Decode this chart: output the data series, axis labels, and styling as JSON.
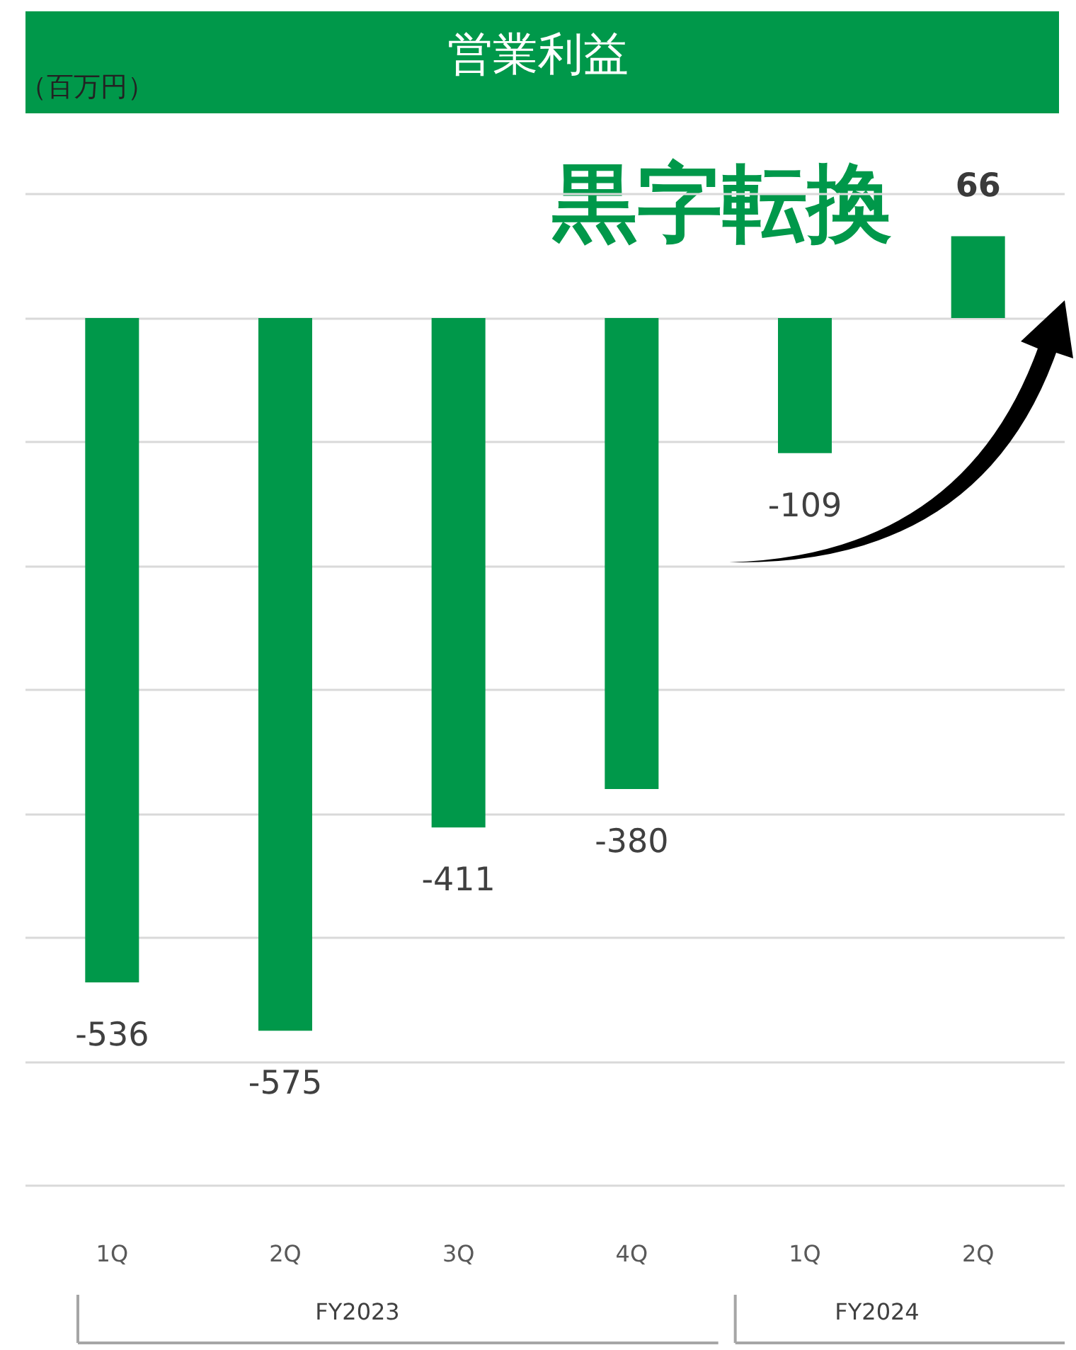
{
  "chart_data": {
    "type": "bar",
    "title": "営業利益",
    "ylabel": "（百万円）",
    "categories": [
      "1Q",
      "2Q",
      "3Q",
      "4Q",
      "1Q",
      "2Q"
    ],
    "values": [
      -536,
      -575,
      -411,
      -380,
      -109,
      66
    ],
    "color": "#00984a",
    "data_labels": true,
    "ylim": [
      -700,
      100
    ],
    "yticks": [
      {
        "value": -700,
        "label": null
      },
      {
        "value": -600,
        "label": null
      },
      {
        "value": -500,
        "label": null
      },
      {
        "value": -400,
        "label": null
      },
      {
        "value": -300,
        "label": null
      },
      {
        "value": -200,
        "label": null
      },
      {
        "value": -100,
        "label": null
      },
      {
        "value": 0,
        "label": null
      },
      {
        "value": 100,
        "label": null
      }
    ],
    "grid": "y",
    "tick_labels": "x",
    "annotations": [
      "黒字転換",
      "FY2023",
      "FY2024"
    ]
  }
}
